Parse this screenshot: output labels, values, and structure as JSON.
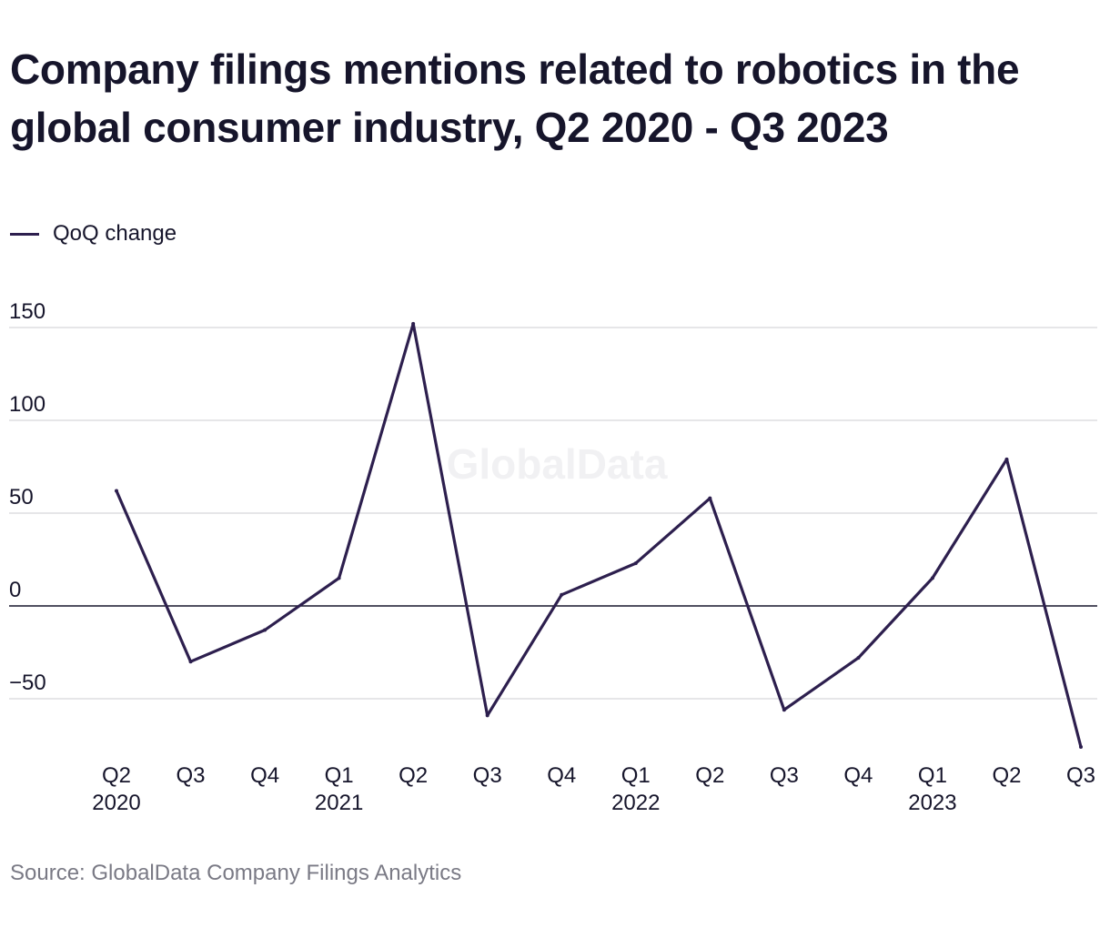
{
  "title": "Company filings mentions related to robotics in the global consumer industry, Q2 2020 - Q3 2023",
  "legend": {
    "label": "QoQ change",
    "color": "#2d1f4e"
  },
  "watermark": "GlobalData",
  "source": "Source: GlobalData Company Filings Analytics",
  "chart_data": {
    "type": "line",
    "title": "Company filings mentions related to robotics in the global consumer industry, Q2 2020 - Q3 2023",
    "categories": [
      "Q2 2020",
      "Q3 2020",
      "Q4 2020",
      "Q1 2021",
      "Q2 2021",
      "Q3 2021",
      "Q4 2021",
      "Q1 2022",
      "Q2 2022",
      "Q3 2022",
      "Q4 2022",
      "Q1 2023",
      "Q2 2023",
      "Q3 2023"
    ],
    "x_tick_labels": [
      {
        "quarter": "Q2",
        "year": "2020"
      },
      {
        "quarter": "Q3",
        "year": ""
      },
      {
        "quarter": "Q4",
        "year": ""
      },
      {
        "quarter": "Q1",
        "year": "2021"
      },
      {
        "quarter": "Q2",
        "year": ""
      },
      {
        "quarter": "Q3",
        "year": ""
      },
      {
        "quarter": "Q4",
        "year": ""
      },
      {
        "quarter": "Q1",
        "year": "2022"
      },
      {
        "quarter": "Q2",
        "year": ""
      },
      {
        "quarter": "Q3",
        "year": ""
      },
      {
        "quarter": "Q4",
        "year": ""
      },
      {
        "quarter": "Q1",
        "year": "2023"
      },
      {
        "quarter": "Q2",
        "year": ""
      },
      {
        "quarter": "Q3",
        "year": ""
      }
    ],
    "series": [
      {
        "name": "QoQ change",
        "color": "#2d1f4e",
        "values": [
          62,
          -30,
          -13,
          15,
          152,
          -59,
          6,
          23,
          58,
          -56,
          -28,
          15,
          79,
          -76
        ]
      }
    ],
    "y_ticks": [
      -50,
      0,
      50,
      100,
      150
    ],
    "y_tick_labels": [
      "−50",
      "0",
      "50",
      "100",
      "150"
    ],
    "ylim": [
      -80,
      155
    ],
    "xlabel": "",
    "ylabel": "",
    "grid": true,
    "zero_line": true,
    "legend_position": "top-left"
  }
}
